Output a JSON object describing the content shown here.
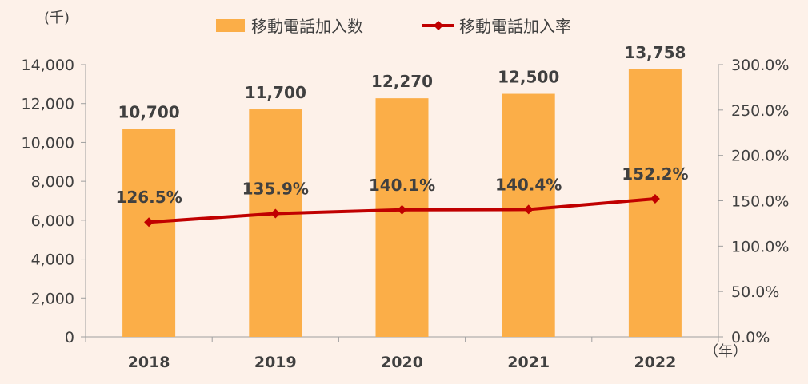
{
  "chart_data": {
    "type": "bar",
    "categories": [
      "2018",
      "2019",
      "2020",
      "2021",
      "2022"
    ],
    "series": [
      {
        "name": "移動電話加入数",
        "type": "bar",
        "axis": "left",
        "values": [
          10700,
          11700,
          12270,
          12500,
          13758
        ],
        "labels": [
          "10,700",
          "11,700",
          "12,270",
          "12,500",
          "13,758"
        ],
        "color": "#FBAE48"
      },
      {
        "name": "移動電話加入率",
        "type": "line",
        "axis": "right",
        "values": [
          126.5,
          135.9,
          140.1,
          140.4,
          152.2
        ],
        "labels": [
          "126.5%",
          "135.9%",
          "140.1%",
          "140.4%",
          "152.2%"
        ],
        "color": "#C00000"
      }
    ],
    "y_left": {
      "unit": "(千)",
      "range": [
        0,
        14000
      ],
      "ticks": [
        "0",
        "2,000",
        "4,000",
        "6,000",
        "8,000",
        "10,000",
        "12,000",
        "14,000"
      ]
    },
    "y_right": {
      "range": [
        0,
        300
      ],
      "ticks": [
        "0.0%",
        "50.0%",
        "100.0%",
        "150.0%",
        "200.0%",
        "250.0%",
        "300.0%"
      ]
    },
    "x_unit": "（年）",
    "legend_position": "top",
    "grid": false,
    "axis_color": "#A0A0A0"
  }
}
